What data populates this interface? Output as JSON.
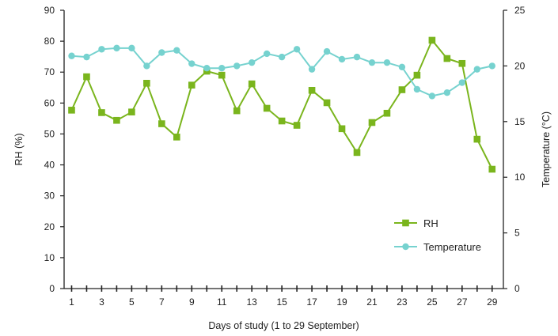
{
  "chart_data": {
    "type": "line",
    "xlabel": "Days of study (1 to 29 September)",
    "ylabel": "RH (%)",
    "y2label": "Temperature (°C)",
    "ylim": [
      0,
      90
    ],
    "y2lim": [
      0,
      25
    ],
    "yticks": [
      0,
      10,
      20,
      30,
      40,
      50,
      60,
      70,
      80,
      90
    ],
    "y2ticks": [
      0,
      5,
      10,
      15,
      20,
      25
    ],
    "xticks": [
      1,
      3,
      5,
      7,
      9,
      11,
      13,
      15,
      17,
      19,
      21,
      23,
      25,
      27,
      29
    ],
    "x": [
      1,
      2,
      3,
      4,
      5,
      6,
      7,
      8,
      9,
      10,
      11,
      12,
      13,
      14,
      15,
      16,
      17,
      18,
      19,
      20,
      21,
      22,
      23,
      24,
      25,
      26,
      27,
      28,
      29
    ],
    "series": [
      {
        "name": "RH",
        "axis": "left",
        "color": "#7ab51d",
        "marker": "square",
        "values": [
          57.7,
          68.5,
          56.9,
          54.4,
          57.1,
          66.4,
          53.3,
          49.0,
          65.8,
          70.3,
          69.0,
          57.5,
          66.2,
          58.3,
          54.2,
          52.8,
          64.1,
          60.1,
          51.7,
          44.0,
          53.7,
          56.7,
          64.3,
          69.0,
          80.3,
          74.4,
          72.8,
          48.3,
          38.6
        ]
      },
      {
        "name": "Temperature",
        "axis": "right",
        "color": "#76d2cf",
        "marker": "circle",
        "values": [
          20.9,
          20.8,
          21.5,
          21.6,
          21.6,
          20.0,
          21.2,
          21.4,
          20.2,
          19.8,
          19.8,
          20.0,
          20.3,
          21.1,
          20.8,
          21.5,
          19.7,
          21.3,
          20.6,
          20.8,
          20.3,
          20.3,
          19.9,
          17.9,
          17.3,
          17.6,
          18.5,
          19.7,
          20.0
        ]
      }
    ],
    "legend_position": "right-lower",
    "grid": false
  }
}
